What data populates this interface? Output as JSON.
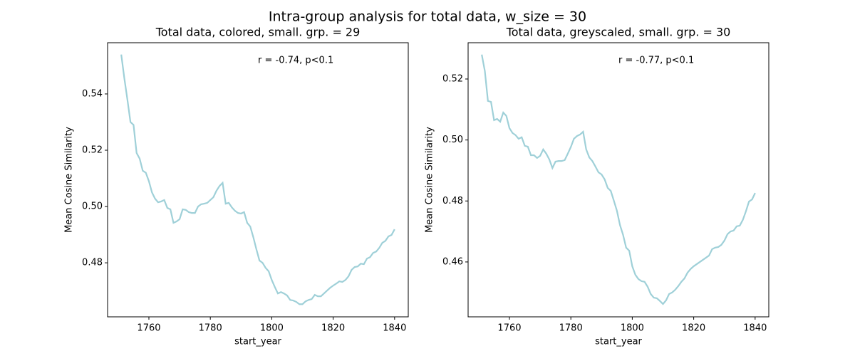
{
  "title": "Intra-group analysis for total data, w_size = 30",
  "chart_data": [
    {
      "type": "line",
      "title": "Total data, colored, small. grp. = 29",
      "annotation": "r = -0.74, p<0.1",
      "xlabel": "start_year",
      "ylabel": "Mean Cosine Similarity",
      "x": [
        1751,
        1752,
        1753,
        1754,
        1755,
        1756,
        1757,
        1758,
        1759,
        1760,
        1761,
        1762,
        1763,
        1764,
        1765,
        1766,
        1767,
        1768,
        1769,
        1770,
        1771,
        1772,
        1773,
        1774,
        1775,
        1776,
        1777,
        1778,
        1779,
        1780,
        1781,
        1782,
        1783,
        1784,
        1785,
        1786,
        1787,
        1788,
        1789,
        1790,
        1791,
        1792,
        1793,
        1794,
        1795,
        1796,
        1797,
        1798,
        1799,
        1800,
        1801,
        1802,
        1803,
        1804,
        1805,
        1806,
        1807,
        1808,
        1809,
        1810,
        1811,
        1812,
        1813,
        1814,
        1815,
        1816,
        1817,
        1818,
        1819,
        1820,
        1821,
        1822,
        1823,
        1824,
        1825,
        1826,
        1827,
        1828,
        1829,
        1830,
        1831,
        1832,
        1833,
        1834,
        1835,
        1836,
        1837,
        1838,
        1839,
        1840
      ],
      "series": [
        {
          "color": "#9fd0d8",
          "values": [
            0.554,
            0.5456,
            0.538,
            0.53,
            0.529,
            0.519,
            0.517,
            0.5127,
            0.512,
            0.509,
            0.505,
            0.5028,
            0.5015,
            0.5018,
            0.5023,
            0.4995,
            0.499,
            0.4942,
            0.4947,
            0.4955,
            0.499,
            0.4988,
            0.498,
            0.4977,
            0.4977,
            0.5,
            0.5008,
            0.501,
            0.5013,
            0.5023,
            0.5033,
            0.5056,
            0.5073,
            0.5084,
            0.501,
            0.5013,
            0.4997,
            0.4985,
            0.4977,
            0.4975,
            0.498,
            0.4942,
            0.4929,
            0.4891,
            0.4848,
            0.4808,
            0.48,
            0.4782,
            0.477,
            0.4739,
            0.4714,
            0.4691,
            0.4696,
            0.4691,
            0.4684,
            0.4668,
            0.4666,
            0.4661,
            0.4653,
            0.4653,
            0.4663,
            0.4668,
            0.4671,
            0.4686,
            0.4681,
            0.4681,
            0.4691,
            0.4701,
            0.4711,
            0.4719,
            0.4726,
            0.4734,
            0.4732,
            0.4739,
            0.4752,
            0.4775,
            0.4785,
            0.4787,
            0.4797,
            0.4795,
            0.4815,
            0.482,
            0.4835,
            0.484,
            0.4853,
            0.4871,
            0.4878,
            0.4894,
            0.4899,
            0.4919
          ]
        }
      ],
      "xlim": [
        1746.55,
        1844.45
      ],
      "ylim": [
        0.4608,
        0.5582
      ],
      "xticks": [
        1760,
        1780,
        1800,
        1820,
        1840
      ],
      "yticks": [
        0.48,
        {
          "value": 0.5,
          "label": "0.50"
        },
        0.52,
        0.54
      ]
    },
    {
      "type": "line",
      "title": "Total data, greyscaled, small. grp. = 30",
      "annotation": "r = -0.77, p<0.1",
      "xlabel": "start_year",
      "ylabel": "Mean Cosine Similarity",
      "x": [
        1751,
        1752,
        1753,
        1754,
        1755,
        1756,
        1757,
        1758,
        1759,
        1760,
        1761,
        1762,
        1763,
        1764,
        1765,
        1766,
        1767,
        1768,
        1769,
        1770,
        1771,
        1772,
        1773,
        1774,
        1775,
        1776,
        1777,
        1778,
        1779,
        1780,
        1781,
        1782,
        1783,
        1784,
        1785,
        1786,
        1787,
        1788,
        1789,
        1790,
        1791,
        1792,
        1793,
        1794,
        1795,
        1796,
        1797,
        1798,
        1799,
        1800,
        1801,
        1802,
        1803,
        1804,
        1805,
        1806,
        1807,
        1808,
        1809,
        1810,
        1811,
        1812,
        1813,
        1814,
        1815,
        1816,
        1817,
        1818,
        1819,
        1820,
        1821,
        1822,
        1823,
        1824,
        1825,
        1826,
        1827,
        1828,
        1829,
        1830,
        1831,
        1832,
        1833,
        1834,
        1835,
        1836,
        1837,
        1838,
        1839,
        1840
      ],
      "series": [
        {
          "color": "#9fd0d8",
          "values": [
            0.528,
            0.5226,
            0.5128,
            0.5125,
            0.5065,
            0.5069,
            0.506,
            0.509,
            0.5079,
            0.5039,
            0.5023,
            0.5016,
            0.5004,
            0.5009,
            0.4981,
            0.4978,
            0.495,
            0.495,
            0.4941,
            0.4948,
            0.4969,
            0.4955,
            0.4936,
            0.4908,
            0.4929,
            0.4931,
            0.4931,
            0.4934,
            0.4955,
            0.4977,
            0.5004,
            0.5013,
            0.5018,
            0.5027,
            0.4969,
            0.4943,
            0.4931,
            0.4913,
            0.4894,
            0.4887,
            0.4871,
            0.4843,
            0.4833,
            0.4801,
            0.4768,
            0.4721,
            0.4689,
            0.4647,
            0.4637,
            0.4586,
            0.4558,
            0.4544,
            0.4537,
            0.4535,
            0.4519,
            0.4495,
            0.4483,
            0.4481,
            0.4472,
            0.4462,
            0.4474,
            0.4495,
            0.45,
            0.4509,
            0.4521,
            0.4535,
            0.4546,
            0.4565,
            0.4577,
            0.4586,
            0.4593,
            0.46,
            0.4607,
            0.4614,
            0.4621,
            0.4642,
            0.4647,
            0.4649,
            0.4656,
            0.467,
            0.4691,
            0.47,
            0.4703,
            0.4717,
            0.4719,
            0.4738,
            0.4766,
            0.4798,
            0.4805,
            0.4826
          ]
        }
      ],
      "xlim": [
        1746.55,
        1844.45
      ],
      "ylim": [
        0.442,
        0.5319
      ],
      "xticks": [
        1760,
        1780,
        1800,
        1820,
        1840
      ],
      "yticks": [
        0.46,
        0.48,
        {
          "value": 0.5,
          "label": "0.50"
        },
        0.52
      ]
    }
  ]
}
